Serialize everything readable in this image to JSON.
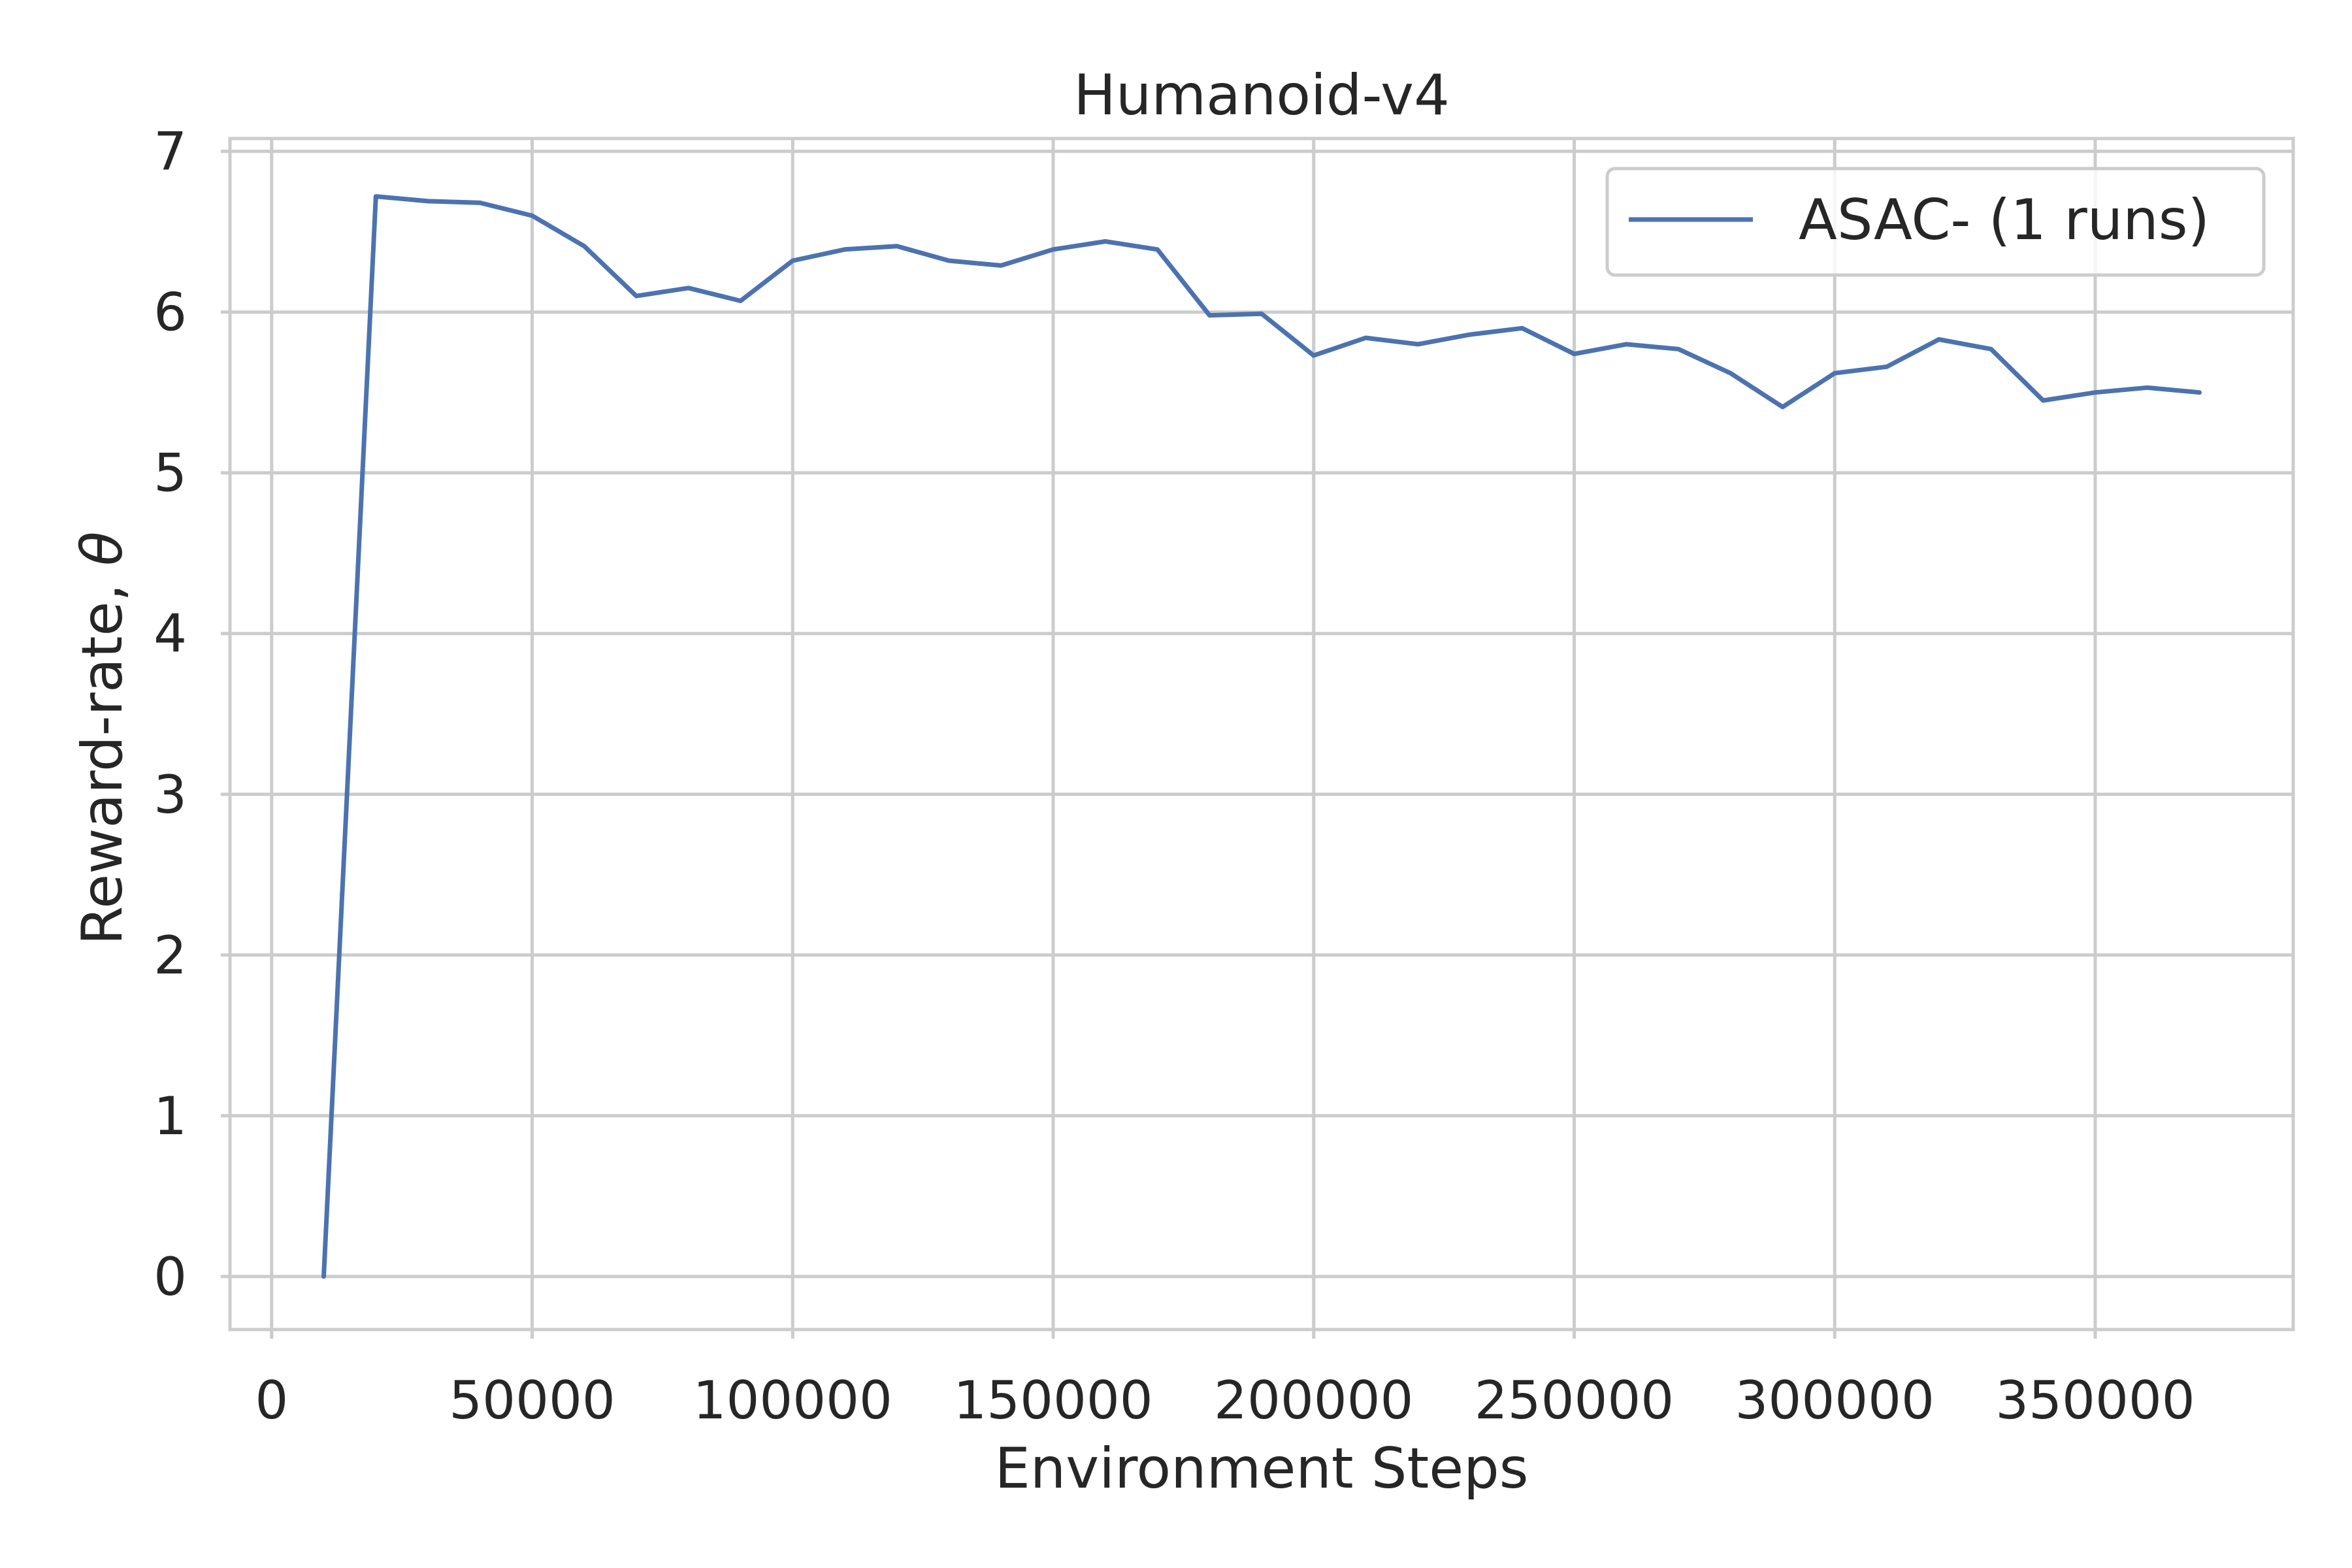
{
  "chart_data": {
    "type": "line",
    "title": "Humanoid-v4",
    "xlabel": "Environment Steps",
    "ylabel_text": "Reward-rate, ",
    "ylabel_symbol": "θ",
    "xlim": [
      -8000,
      388000
    ],
    "ylim": [
      -0.33,
      7.08
    ],
    "xticks": [
      0,
      50000,
      100000,
      150000,
      200000,
      250000,
      300000,
      350000
    ],
    "xtick_labels": [
      "0",
      "50000",
      "100000",
      "150000",
      "200000",
      "250000",
      "300000",
      "350000"
    ],
    "yticks": [
      0,
      1,
      2,
      3,
      4,
      5,
      6,
      7
    ],
    "ytick_labels": [
      "0",
      "1",
      "2",
      "3",
      "4",
      "5",
      "6",
      "7"
    ],
    "grid": true,
    "legend_position": "top-right",
    "series": [
      {
        "name": "ASAC- (1 runs)",
        "color": "#4c72b0",
        "x": [
          10000,
          20000,
          30000,
          40000,
          50000,
          60000,
          70000,
          80000,
          90000,
          100000,
          110000,
          120000,
          130000,
          140000,
          150000,
          160000,
          170000,
          180000,
          190000,
          200000,
          210000,
          220000,
          230000,
          240000,
          250000,
          260000,
          270000,
          280000,
          290000,
          300000,
          310000,
          320000,
          330000,
          340000,
          350000,
          360000,
          370000
        ],
        "y": [
          0,
          6.72,
          6.69,
          6.68,
          6.6,
          6.41,
          6.1,
          6.15,
          6.07,
          6.32,
          6.39,
          6.41,
          6.32,
          6.29,
          6.39,
          6.44,
          6.39,
          5.98,
          5.99,
          5.73,
          5.84,
          5.8,
          5.86,
          5.9,
          5.74,
          5.8,
          5.77,
          5.62,
          5.41,
          5.62,
          5.66,
          5.83,
          5.77,
          5.45,
          5.5,
          5.53,
          5.5
        ]
      }
    ]
  }
}
